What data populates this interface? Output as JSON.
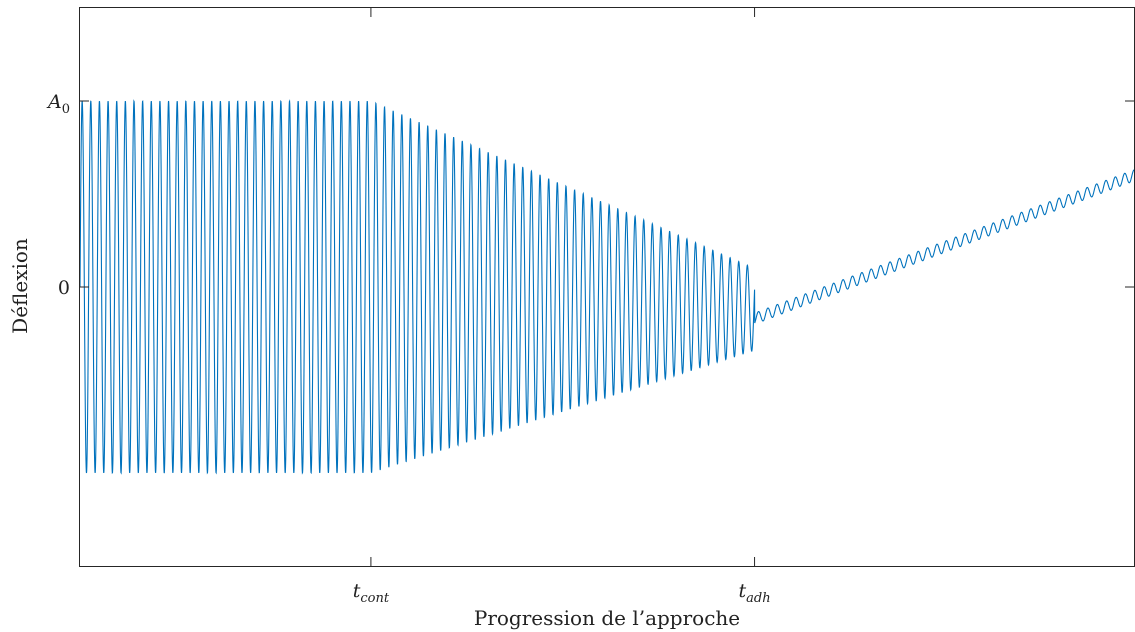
{
  "chart_data": {
    "type": "line",
    "title": "",
    "xlabel": "Progression de l’approche",
    "ylabel": "Déflexion",
    "grid": false,
    "legend": "none",
    "xlim": [
      0,
      1
    ],
    "ylim": [
      -1.5,
      1.5
    ],
    "x_ticks": [
      {
        "value": 0.276,
        "main": "t",
        "sub": "cont"
      },
      {
        "value": 0.64,
        "main": "t",
        "sub": "adh"
      }
    ],
    "y_ticks": [
      {
        "value": 0,
        "label": "0"
      },
      {
        "value": 1,
        "main": "A",
        "sub": "0"
      }
    ],
    "series": [
      {
        "color": "#0072BD",
        "phases": {
          "free_oscillation": {
            "x_start": 0,
            "x_end": 0.276,
            "center": 0,
            "amplitude": 1
          },
          "contact": {
            "x_start": 0.276,
            "x_end": 0.64,
            "center_end": -0.12,
            "amplitude_end": 0.22
          },
          "adhesion": {
            "x_start": 0.64,
            "x_end": 1,
            "center_start": -0.17,
            "center_end": 0.6,
            "amplitude": 0.03
          }
        },
        "cycles": 122
      }
    ]
  }
}
